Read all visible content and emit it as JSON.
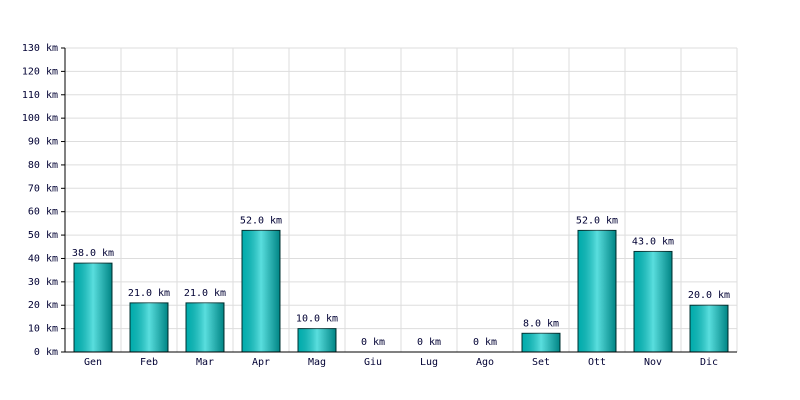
{
  "chart_data": {
    "type": "bar",
    "categories": [
      "Gen",
      "Feb",
      "Mar",
      "Apr",
      "Mag",
      "Giu",
      "Lug",
      "Ago",
      "Set",
      "Ott",
      "Nov",
      "Dic"
    ],
    "values": [
      38,
      21,
      21,
      52,
      10,
      0,
      0,
      0,
      8,
      52,
      43,
      20
    ],
    "value_labels": [
      "38.0 km",
      "21.0 km",
      "21.0 km",
      "52.0 km",
      "10.0 km",
      "0 km",
      "0 km",
      "0 km",
      "8.0 km",
      "52.0 km",
      "43.0 km",
      "20.0 km"
    ],
    "color": "#00cccc",
    "ylim": [
      0,
      130
    ],
    "yticks": [
      {
        "value": 0,
        "label": "0 km"
      },
      {
        "value": 10,
        "label": "10 km"
      },
      {
        "value": 20,
        "label": "20 km"
      },
      {
        "value": 30,
        "label": "30 km"
      },
      {
        "value": 40,
        "label": "40 km"
      },
      {
        "value": 50,
        "label": "50 km"
      },
      {
        "value": 60,
        "label": "60 km"
      },
      {
        "value": 70,
        "label": "70 km"
      },
      {
        "value": 80,
        "label": "80 km"
      },
      {
        "value": 90,
        "label": "90 km"
      },
      {
        "value": 100,
        "label": "100 km"
      },
      {
        "value": 110,
        "label": "110 km"
      },
      {
        "value": 120,
        "label": "120 km"
      },
      {
        "value": 130,
        "label": "130 km"
      }
    ],
    "grid": true
  }
}
